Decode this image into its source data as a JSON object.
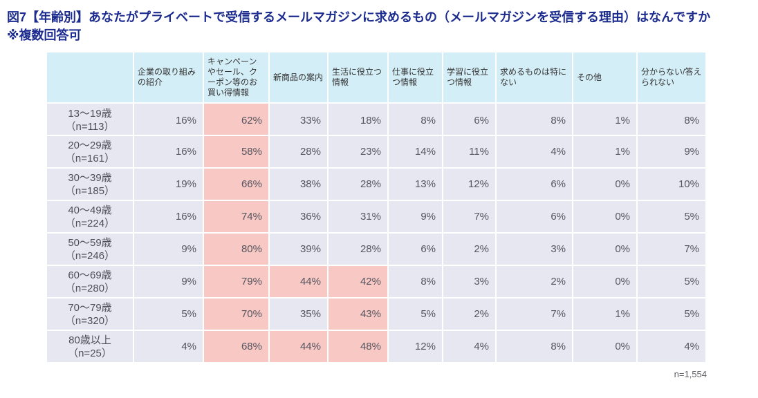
{
  "title": {
    "line1": "図7【年齢別】あなたがプライベートで受信するメールマガジンに求めるもの（メールマガジンを受信する理由）はなんですか",
    "line2": "※複数回答可"
  },
  "chart_data": {
    "type": "table",
    "title": "図7【年齢別】あなたがプライベートで受信するメールマガジンに求めるもの（メールマガジンを受信する理由）はなんですか ※複数回答可",
    "unit": "%",
    "columns": [
      "企業の取り組みの紹介",
      "キャンペーンやセール、クーポン等のお買い得情報",
      "新商品の案内",
      "生活に役立つ情報",
      "仕事に役立つ情報",
      "学習に役立つ情報",
      "求めるものは特にない",
      "その他",
      "分からない/答えられない"
    ],
    "rows": [
      {
        "label": "13～19歳",
        "n_label": "（n=113）",
        "n": 113,
        "values_pct": [
          16,
          62,
          33,
          18,
          8,
          6,
          8,
          1,
          8
        ],
        "highlight": [
          1
        ]
      },
      {
        "label": "20～29歳",
        "n_label": "（n=161）",
        "n": 161,
        "values_pct": [
          16,
          58,
          28,
          23,
          14,
          11,
          4,
          1,
          9
        ],
        "highlight": [
          1
        ]
      },
      {
        "label": "30～39歳",
        "n_label": "（n=185）",
        "n": 185,
        "values_pct": [
          19,
          66,
          38,
          28,
          13,
          12,
          6,
          0,
          10
        ],
        "highlight": [
          1
        ]
      },
      {
        "label": "40～49歳",
        "n_label": "（n=224）",
        "n": 224,
        "values_pct": [
          16,
          74,
          36,
          31,
          9,
          7,
          6,
          0,
          5
        ],
        "highlight": [
          1
        ]
      },
      {
        "label": "50～59歳",
        "n_label": "（n=246）",
        "n": 246,
        "values_pct": [
          9,
          80,
          39,
          28,
          6,
          2,
          3,
          0,
          7
        ],
        "highlight": [
          1
        ]
      },
      {
        "label": "60～69歳",
        "n_label": "（n=280）",
        "n": 280,
        "values_pct": [
          9,
          79,
          44,
          42,
          8,
          3,
          2,
          0,
          5
        ],
        "highlight": [
          1,
          2,
          3
        ]
      },
      {
        "label": "70～79歳",
        "n_label": "（n=320）",
        "n": 320,
        "values_pct": [
          5,
          70,
          35,
          43,
          5,
          2,
          7,
          1,
          5
        ],
        "highlight": [
          1,
          3
        ]
      },
      {
        "label": "80歳以上",
        "n_label": "（n=25）",
        "n": 25,
        "values_pct": [
          4,
          68,
          44,
          48,
          12,
          4,
          8,
          0,
          4
        ],
        "highlight": [
          1,
          2,
          3
        ]
      }
    ],
    "footnote": "n=1,554",
    "total_n": 1554
  },
  "colors": {
    "header_bg": "#d4eef7",
    "cell_bg": "#e6e7f0",
    "highlight_bg": "#f8c8c4",
    "title_color": "#1b2b8e"
  }
}
